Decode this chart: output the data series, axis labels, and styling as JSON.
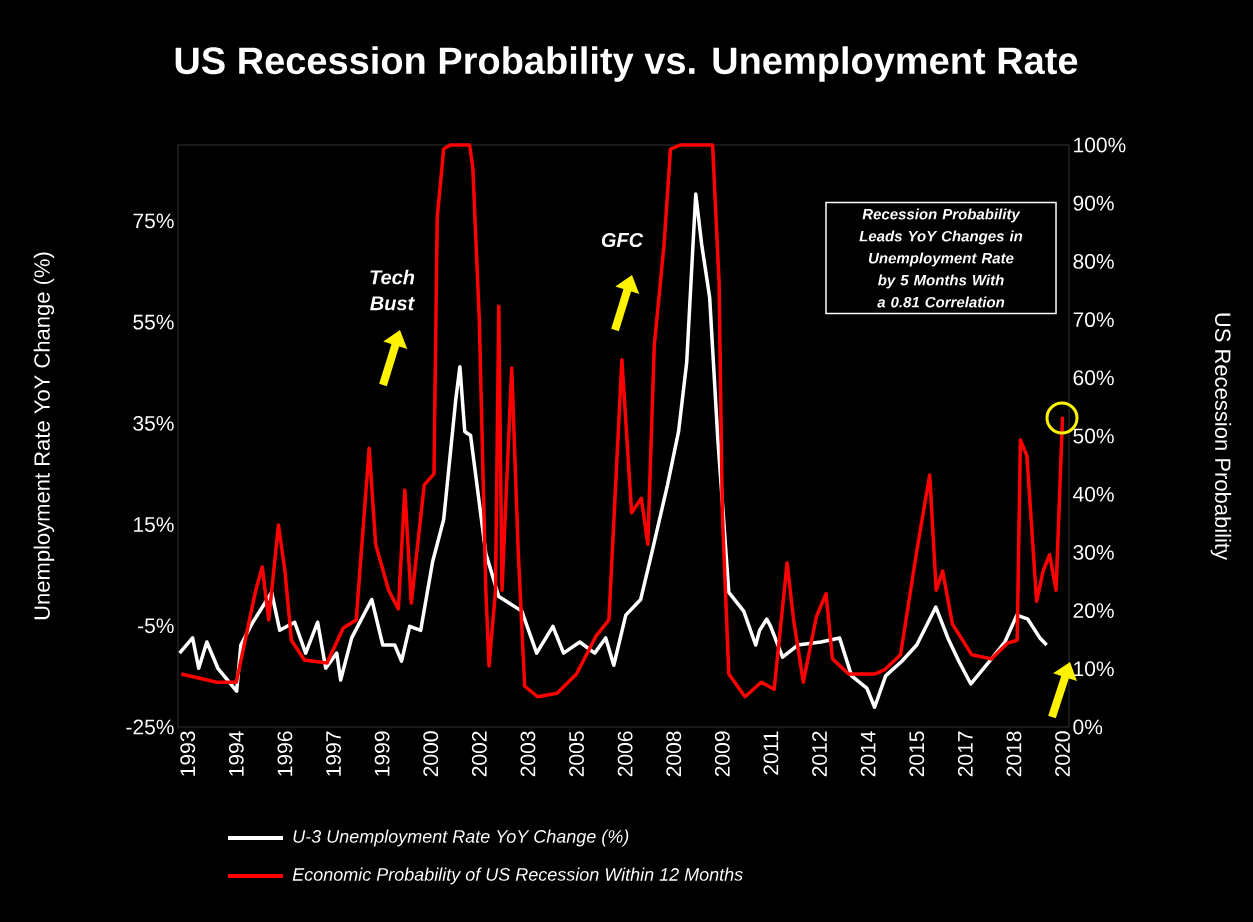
{
  "chart_data": {
    "type": "line",
    "title": "US Recession Probability vs. Unemployment Rate",
    "ylabel": "Unemployment Rate YoY Change (%)",
    "y2label": "US Recession Probability",
    "annotations": [
      "Tech Bust",
      "GFC",
      "Recession Probability Leads YoY Changes in Unemployment Rate by 5 Months With a 0.81 Correlation"
    ],
    "xlim": [
      1992.7,
      2020.2
    ],
    "xticks": [
      {
        "value": 1993,
        "label": "1993"
      },
      {
        "value": 1994.5,
        "label": "1994"
      },
      {
        "value": 1996,
        "label": "1996"
      },
      {
        "value": 1997.5,
        "label": "1997"
      },
      {
        "value": 1999,
        "label": "1999"
      },
      {
        "value": 2000.5,
        "label": "2000"
      },
      {
        "value": 2002,
        "label": "2002"
      },
      {
        "value": 2003.5,
        "label": "2003"
      },
      {
        "value": 2005,
        "label": "2005"
      },
      {
        "value": 2006.5,
        "label": "2006"
      },
      {
        "value": 2008,
        "label": "2008"
      },
      {
        "value": 2009.5,
        "label": "2009"
      },
      {
        "value": 2011,
        "label": "2011"
      },
      {
        "value": 2012.5,
        "label": "2012"
      },
      {
        "value": 2014,
        "label": "2014"
      },
      {
        "value": 2015.5,
        "label": "2015"
      },
      {
        "value": 2017,
        "label": "2017"
      },
      {
        "value": 2018.5,
        "label": "2018"
      },
      {
        "value": 2020,
        "label": "2020"
      }
    ],
    "ylim": [
      -25,
      90
    ],
    "yticks": [
      {
        "value": -25,
        "label": "-25%"
      },
      {
        "value": -5,
        "label": "-5%"
      },
      {
        "value": 15,
        "label": "15%"
      },
      {
        "value": 35,
        "label": "35%"
      },
      {
        "value": 55,
        "label": "55%"
      },
      {
        "value": 75,
        "label": "75%"
      }
    ],
    "y2lim": [
      0,
      100
    ],
    "y2ticks": [
      {
        "value": 0,
        "label": "0%"
      },
      {
        "value": 10,
        "label": "10%"
      },
      {
        "value": 20,
        "label": "20%"
      },
      {
        "value": 30,
        "label": "30%"
      },
      {
        "value": 40,
        "label": "40%"
      },
      {
        "value": 50,
        "label": "50%"
      },
      {
        "value": 60,
        "label": "60%"
      },
      {
        "value": 70,
        "label": "70%"
      },
      {
        "value": 80,
        "label": "80%"
      },
      {
        "value": 90,
        "label": "90%"
      },
      {
        "value": 100,
        "label": "100%"
      }
    ],
    "legend": "bottom",
    "grid": false,
    "marker": "none",
    "line_style": "solid",
    "series": [
      {
        "name": "U-3 Unemployment Rate YoY Change (%)",
        "color": "#ffffff",
        "x": [
          1992.75,
          1993.15,
          1993.34,
          1993.59,
          1993.93,
          1994.51,
          1994.64,
          1995.01,
          1995.59,
          1995.84,
          1996.3,
          1996.64,
          1997.01,
          1997.26,
          1997.6,
          1997.72,
          1998.06,
          1998.68,
          1999.02,
          1999.39,
          1999.6,
          1999.85,
          2000.19,
          2000.56,
          2000.9,
          2001.27,
          2001.4,
          2001.55,
          2001.73,
          2002.2,
          2002.6,
          2003.31,
          2003.77,
          2004.27,
          2004.6,
          2005.1,
          2005.56,
          2005.9,
          2006.15,
          2006.52,
          2006.98,
          2007.32,
          2007.81,
          2008.15,
          2008.4,
          2008.59,
          2008.68,
          2008.86,
          2009.11,
          2009.36,
          2009.7,
          2010.16,
          2010.53,
          2010.65,
          2010.87,
          2010.99,
          2011.36,
          2011.83,
          2012.54,
          2013.12,
          2013.49,
          2013.96,
          2014.2,
          2014.54,
          2015.04,
          2015.5,
          2016.09,
          2016.46,
          2016.8,
          2017.17,
          2017.75,
          2018.22,
          2018.59,
          2018.93,
          2019.3,
          2019.51
        ],
        "values": [
          -10.4,
          -7.4,
          -13.4,
          -8.2,
          -13.4,
          -17.9,
          -8.8,
          -4.3,
          1.6,
          -5.9,
          -4.3,
          -10.4,
          -4.3,
          -13.4,
          -10.4,
          -15.7,
          -7.4,
          0.2,
          -8.8,
          -8.8,
          -12.0,
          -5.1,
          -5.9,
          7.7,
          16.0,
          39.5,
          46.2,
          33.4,
          32.6,
          9.3,
          0.8,
          -2.1,
          -10.4,
          -5.1,
          -10.4,
          -8.2,
          -10.4,
          -7.4,
          -12.8,
          -2.9,
          0.2,
          9.3,
          22.9,
          33.4,
          47.0,
          69.7,
          80.3,
          70.5,
          59.8,
          32.0,
          1.6,
          -2.1,
          -8.8,
          -5.9,
          -3.7,
          -5.1,
          -11.2,
          -8.8,
          -8.2,
          -7.4,
          -14.9,
          -17.3,
          -21.1,
          -14.9,
          -12.0,
          -8.8,
          -1.3,
          -7.4,
          -12.0,
          -16.5,
          -12.0,
          -8.2,
          -2.9,
          -3.7,
          -7.4,
          -8.8
        ]
      },
      {
        "name": "Economic Probability of US Recession Within 12 Months",
        "color": "#ff0000",
        "axis": "y2",
        "x": [
          1992.8,
          1993.9,
          1994.5,
          1995.1,
          1995.3,
          1995.5,
          1995.8,
          1996.0,
          1996.2,
          1996.6,
          1997.3,
          1997.8,
          1998.2,
          1998.6,
          1998.8,
          1999.2,
          1999.5,
          1999.7,
          1999.9,
          2000.3,
          2000.6,
          2000.7,
          2000.9,
          2001.1,
          2001.7,
          2001.8,
          2002.0,
          2002.2,
          2002.3,
          2002.5,
          2002.6,
          2002.7,
          2003.0,
          2003.2,
          2003.4,
          2003.8,
          2004.4,
          2005.0,
          2005.6,
          2006.0,
          2006.4,
          2006.7,
          2007.0,
          2007.2,
          2007.4,
          2007.7,
          2007.9,
          2008.2,
          2009.2,
          2009.4,
          2009.5,
          2009.7,
          2010.2,
          2010.7,
          2011.1,
          2011.5,
          2011.7,
          2012.0,
          2012.4,
          2012.7,
          2012.9,
          2013.4,
          2014.2,
          2014.5,
          2015.0,
          2015.5,
          2015.9,
          2016.1,
          2016.3,
          2016.6,
          2017.2,
          2017.8,
          2018.3,
          2018.6,
          2018.7,
          2018.9,
          2019.2,
          2019.4,
          2019.6,
          2019.8,
          2020.0
        ],
        "values": [
          9.1,
          7.7,
          7.7,
          23.5,
          27.5,
          18.4,
          34.7,
          26.8,
          14.9,
          11.5,
          11.0,
          17.0,
          18.4,
          47.9,
          31.4,
          23.5,
          20.3,
          40.7,
          21.3,
          41.6,
          43.5,
          87.5,
          99.3,
          100,
          100,
          96,
          69.8,
          23.5,
          10.5,
          23.5,
          72.3,
          23.5,
          61.7,
          30.2,
          7.0,
          5.2,
          5.8,
          9.1,
          15.6,
          18.4,
          63.1,
          36.8,
          39.3,
          31.4,
          65.6,
          82.8,
          99.3,
          100,
          100,
          76.3,
          36.8,
          9.1,
          5.2,
          7.7,
          6.5,
          28.2,
          18.4,
          7.7,
          18.9,
          22.9,
          11.7,
          9.1,
          9.1,
          9.8,
          12.4,
          30.2,
          43.3,
          23.5,
          26.8,
          17.7,
          12.4,
          11.7,
          14.4,
          14.9,
          49.3,
          46.6,
          21.6,
          26.8,
          29.6,
          23.5,
          53.3
        ]
      }
    ]
  }
}
